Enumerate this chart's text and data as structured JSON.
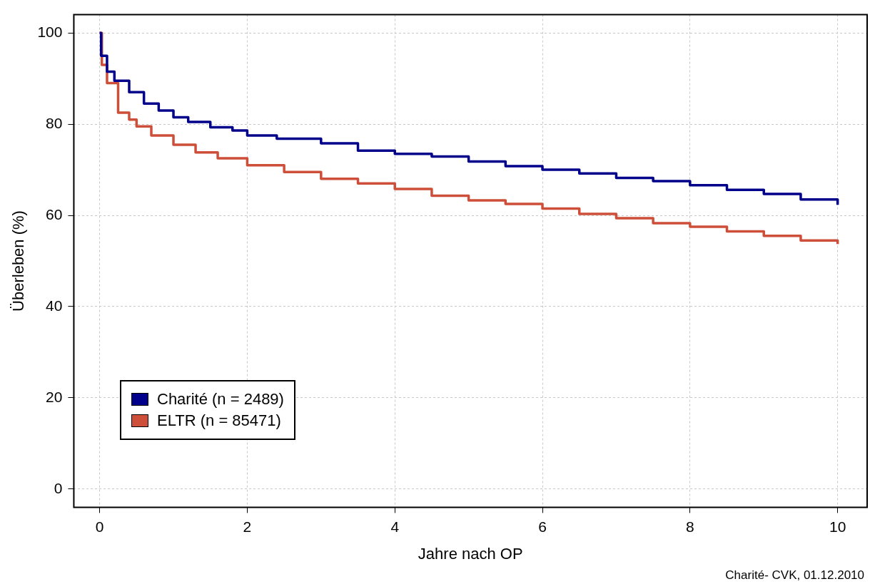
{
  "chart_data": {
    "type": "step",
    "xlabel": "Jahre nach OP",
    "ylabel": "Überleben (%)",
    "xlim": [
      -0.35,
      10.4
    ],
    "ylim": [
      -4,
      104
    ],
    "xticks": [
      0,
      2,
      4,
      6,
      8,
      10
    ],
    "yticks": [
      0,
      20,
      40,
      60,
      80,
      100
    ],
    "grid": true,
    "legend": "bottom left",
    "line_style": "solid",
    "marker": "none",
    "annotations": [
      "Charité- CVK, 01.12.2010"
    ],
    "series": [
      {
        "name": "Charité (n = 2489)",
        "color": "#00008b",
        "x": [
          0,
          0.02,
          0.1,
          0.2,
          0.4,
          0.6,
          0.8,
          1,
          1.2,
          1.5,
          1.8,
          2,
          2.4,
          3,
          3.5,
          4,
          4.5,
          5,
          5.5,
          6,
          6.5,
          7,
          7.5,
          8,
          8.5,
          9,
          9.5,
          10
        ],
        "values": [
          100,
          95,
          91.5,
          89.5,
          87,
          84.5,
          83,
          81.5,
          80.5,
          79.3,
          78.6,
          77.5,
          76.8,
          75.8,
          74.2,
          73.5,
          72.9,
          71.8,
          70.8,
          70,
          69.2,
          68.2,
          67.5,
          66.6,
          65.6,
          64.7,
          63.5,
          62.3
        ]
      },
      {
        "name": "ELTR (n = 85471)",
        "color": "#cd4f39",
        "x": [
          0,
          0.03,
          0.1,
          0.25,
          0.4,
          0.5,
          0.7,
          1,
          1.3,
          1.6,
          2,
          2.5,
          3,
          3.5,
          4,
          4.5,
          5,
          5.5,
          6,
          6.5,
          7,
          7.5,
          8,
          8.5,
          9,
          9.5,
          10
        ],
        "values": [
          100,
          93,
          89,
          82.5,
          81,
          79.5,
          77.5,
          75.5,
          73.8,
          72.5,
          71,
          69.5,
          68,
          67,
          65.8,
          64.3,
          63.3,
          62.5,
          61.5,
          60.3,
          59.4,
          58.3,
          57.5,
          56.5,
          55.5,
          54.5,
          53.7
        ]
      }
    ]
  }
}
